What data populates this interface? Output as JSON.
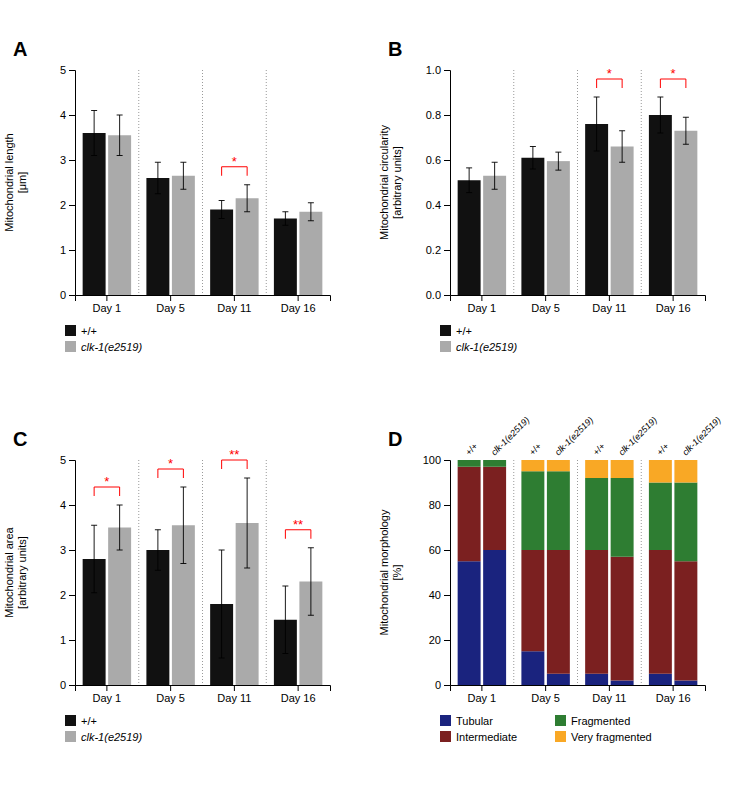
{
  "chart_data": [
    {
      "type": "bar",
      "title": "A",
      "ylabel": "Mitochondrial length\n[μm]",
      "categories": [
        "Day 1",
        "Day 5",
        "Day 11",
        "Day 16"
      ],
      "series": [
        {
          "name": "+/+",
          "color": "#111111",
          "values": [
            3.6,
            2.6,
            1.9,
            1.7
          ],
          "errors": [
            0.5,
            0.35,
            0.2,
            0.15
          ]
        },
        {
          "name": "clk-1(e2519)",
          "color": "#aaaaaa",
          "values": [
            3.55,
            2.65,
            2.15,
            1.85
          ],
          "errors": [
            0.45,
            0.3,
            0.3,
            0.2
          ]
        }
      ],
      "ylim": [
        0,
        5
      ],
      "yticks": [
        0,
        1,
        2,
        3,
        4,
        5
      ],
      "grid": false,
      "legend": "bottom",
      "annotations": [
        {
          "category": "Day 11",
          "text": "*",
          "color": "red"
        }
      ]
    },
    {
      "type": "bar",
      "title": "B",
      "ylabel": "Mitochondrial circularity\n[arbitrary units]",
      "categories": [
        "Day 1",
        "Day 5",
        "Day 11",
        "Day 16"
      ],
      "series": [
        {
          "name": "+/+",
          "color": "#111111",
          "values": [
            0.51,
            0.61,
            0.76,
            0.8
          ],
          "errors": [
            0.055,
            0.05,
            0.12,
            0.08
          ]
        },
        {
          "name": "clk-1(e2519)",
          "color": "#aaaaaa",
          "values": [
            0.53,
            0.595,
            0.66,
            0.73
          ],
          "errors": [
            0.06,
            0.04,
            0.07,
            0.06
          ]
        }
      ],
      "ylim": [
        0.0,
        1.0
      ],
      "yticks": [
        {
          "value": 0,
          "label": "0.0"
        },
        0.2,
        0.4,
        0.6,
        0.8,
        {
          "value": 1,
          "label": "1.0"
        }
      ],
      "grid": false,
      "legend": "bottom",
      "annotations": [
        {
          "category": "Day 11",
          "text": "*",
          "color": "red"
        },
        {
          "category": "Day 16",
          "text": "*",
          "color": "red"
        }
      ]
    },
    {
      "type": "bar",
      "title": "C",
      "ylabel": "Mitochondrial area\n[arbitrary units]",
      "categories": [
        "Day 1",
        "Day 5",
        "Day 11",
        "Day 16"
      ],
      "series": [
        {
          "name": "+/+",
          "color": "#111111",
          "values": [
            2.8,
            3.0,
            1.8,
            1.45
          ],
          "errors": [
            0.75,
            0.45,
            1.2,
            0.75
          ]
        },
        {
          "name": "clk-1(e2519)",
          "color": "#aaaaaa",
          "values": [
            3.5,
            3.55,
            3.6,
            2.3
          ],
          "errors": [
            0.5,
            0.85,
            1.0,
            0.75
          ]
        }
      ],
      "ylim": [
        0,
        5
      ],
      "yticks": [
        0,
        1,
        2,
        3,
        4,
        5
      ],
      "grid": false,
      "legend": "bottom",
      "annotations": [
        {
          "category": "Day 1",
          "text": "*",
          "color": "red"
        },
        {
          "category": "Day 5",
          "text": "*",
          "color": "red"
        },
        {
          "category": "Day 11",
          "text": "**",
          "color": "red"
        },
        {
          "category": "Day 16",
          "text": "**",
          "color": "red"
        }
      ]
    },
    {
      "type": "bar",
      "stacked": true,
      "title": "D",
      "ylabel": "Mitochondrial morphology\n[%]",
      "categories": [
        "Day 1",
        "Day 5",
        "Day 11",
        "Day 16"
      ],
      "groups": [
        "+/+",
        "clk-1(e2519)"
      ],
      "series": [
        {
          "name": "Tubular",
          "color": "#1a237e",
          "values": [
            [
              55,
              60
            ],
            [
              15,
              5
            ],
            [
              5,
              2
            ],
            [
              5,
              2
            ]
          ]
        },
        {
          "name": "Intermediate",
          "color": "#7b2020",
          "values": [
            [
              42,
              37
            ],
            [
              45,
              55
            ],
            [
              55,
              55
            ],
            [
              55,
              53
            ]
          ]
        },
        {
          "name": "Fragmented",
          "color": "#2e7d32",
          "values": [
            [
              3,
              3
            ],
            [
              35,
              35
            ],
            [
              32,
              35
            ],
            [
              30,
              35
            ]
          ]
        },
        {
          "name": "Very fragmented",
          "color": "#f9a825",
          "values": [
            [
              0,
              0
            ],
            [
              5,
              5
            ],
            [
              8,
              8
            ],
            [
              10,
              10
            ]
          ]
        }
      ],
      "ylim": [
        0,
        100
      ],
      "yticks": [
        0,
        20,
        40,
        60,
        80,
        100
      ],
      "grid": false,
      "legend": "bottom"
    }
  ]
}
